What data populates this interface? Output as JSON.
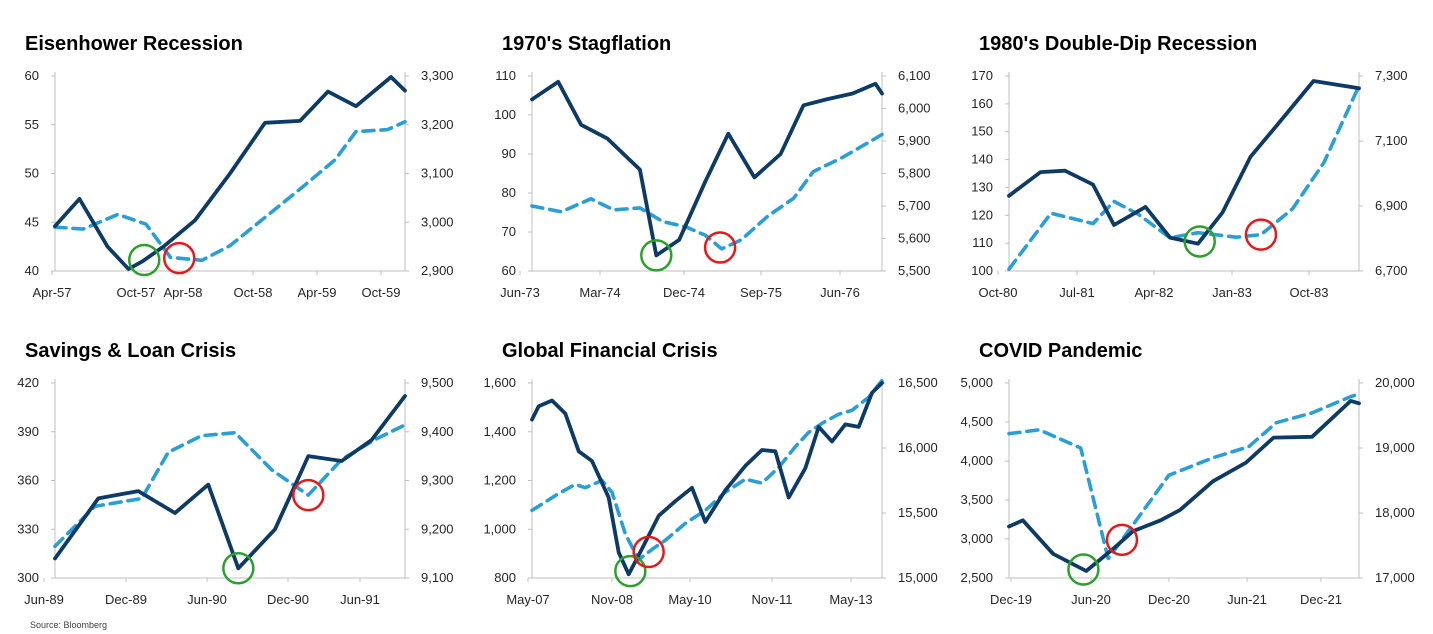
{
  "source": "Source: Bloomberg",
  "colors": {
    "dark_line": "#0d3b66",
    "light_line": "#2a9fd6",
    "green_circle": "#2ca02c",
    "red_circle": "#e31a1c"
  },
  "chart_data": [
    {
      "type": "line",
      "title": "Eisenhower Recession",
      "x_tick_labels": [
        "Apr-57",
        "Oct-57",
        "Apr-58",
        "Oct-58",
        "Apr-59",
        "Oct-59"
      ],
      "y_left": {
        "ylim": [
          40,
          60
        ],
        "ticks": [
          "40",
          "45",
          "50",
          "55",
          "60"
        ]
      },
      "y_right": {
        "ylim": [
          2900,
          3300
        ],
        "ticks": [
          "2,900",
          "3,000",
          "3,100",
          "3,200",
          "3,300"
        ]
      },
      "series": [
        {
          "axis": "left",
          "style": "solid",
          "points": [
            [
              0,
              44.6
            ],
            [
              0.7,
              47.4
            ],
            [
              1.5,
              42.5
            ],
            [
              2.1,
              40.2
            ],
            [
              2.5,
              41.0
            ],
            [
              3.1,
              42.5
            ],
            [
              4.0,
              45.2
            ],
            [
              5.0,
              50.0
            ],
            [
              6.0,
              55.2
            ],
            [
              7.0,
              55.4
            ],
            [
              7.8,
              58.4
            ],
            [
              8.6,
              56.9
            ],
            [
              9.6,
              59.9
            ],
            [
              10.0,
              58.5
            ]
          ]
        },
        {
          "axis": "right",
          "style": "dashed",
          "points": [
            [
              0,
              2990
            ],
            [
              0.8,
              2986
            ],
            [
              1.8,
              3016
            ],
            [
              2.6,
              2996
            ],
            [
              3.3,
              2928
            ],
            [
              4.2,
              2922
            ],
            [
              5.0,
              2952
            ],
            [
              6.0,
              3010
            ],
            [
              7.0,
              3068
            ],
            [
              8.0,
              3128
            ],
            [
              8.6,
              3186
            ],
            [
              9.5,
              3190
            ],
            [
              10.0,
              3206
            ]
          ]
        }
      ],
      "green_circle_x": 2.55,
      "red_circle_x": 3.55
    },
    {
      "type": "line",
      "title": "1970's Stagflation",
      "x_tick_labels": [
        "Jun-73",
        "Mar-74",
        "Dec-74",
        "Sep-75",
        "Jun-76"
      ],
      "y_left": {
        "ylim": [
          60,
          110
        ],
        "ticks": [
          "60",
          "70",
          "80",
          "90",
          "100",
          "110"
        ]
      },
      "y_right": {
        "ylim": [
          5500,
          6100
        ],
        "ticks": [
          "5,500",
          "5,600",
          "5,700",
          "5,800",
          "5,900",
          "6,000",
          "6,100"
        ]
      },
      "series": [
        {
          "axis": "left",
          "style": "solid",
          "points": [
            [
              0,
              104
            ],
            [
              0.8,
              108.5
            ],
            [
              1.5,
              97.5
            ],
            [
              2.3,
              94
            ],
            [
              3.3,
              86
            ],
            [
              3.8,
              64
            ],
            [
              4.5,
              68
            ],
            [
              5.3,
              83
            ],
            [
              6.0,
              95.2
            ],
            [
              6.8,
              84
            ],
            [
              7.6,
              90
            ],
            [
              8.3,
              102.5
            ],
            [
              9.0,
              104
            ],
            [
              9.8,
              105.5
            ],
            [
              10.5,
              108
            ],
            [
              10.7,
              105.5
            ]
          ]
        },
        {
          "axis": "right",
          "style": "dashed",
          "points": [
            [
              0,
              5700
            ],
            [
              0.9,
              5682
            ],
            [
              1.8,
              5722
            ],
            [
              2.5,
              5688
            ],
            [
              3.3,
              5694
            ],
            [
              4.0,
              5652
            ],
            [
              4.7,
              5636
            ],
            [
              5.3,
              5610
            ],
            [
              5.8,
              5568
            ],
            [
              6.4,
              5596
            ],
            [
              7.2,
              5668
            ],
            [
              8.0,
              5724
            ],
            [
              8.6,
              5806
            ],
            [
              9.5,
              5850
            ],
            [
              10.5,
              5908
            ],
            [
              10.7,
              5920
            ]
          ]
        }
      ],
      "green_circle_x": 3.8,
      "red_circle_x": 5.75
    },
    {
      "type": "line",
      "title": "1980's Double-Dip Recession",
      "x_tick_labels": [
        "Oct-80",
        "Jul-81",
        "Apr-82",
        "Jan-83",
        "Oct-83"
      ],
      "y_left": {
        "ylim": [
          100,
          170
        ],
        "ticks": [
          "100",
          "110",
          "120",
          "130",
          "140",
          "150",
          "160",
          "170"
        ]
      },
      "y_right": {
        "ylim": [
          6700,
          7300
        ],
        "ticks": [
          "6,700",
          "6,900",
          "7,100",
          "7,300"
        ]
      },
      "series": [
        {
          "axis": "left",
          "style": "solid",
          "points": [
            [
              0,
              127
            ],
            [
              0.9,
              135.5
            ],
            [
              1.6,
              136
            ],
            [
              2.4,
              131
            ],
            [
              3.0,
              116.5
            ],
            [
              3.9,
              123
            ],
            [
              4.6,
              112
            ],
            [
              5.4,
              109.8
            ],
            [
              6.1,
              121
            ],
            [
              6.9,
              141
            ],
            [
              7.7,
              153
            ],
            [
              8.7,
              168.2
            ],
            [
              10.0,
              165.6
            ]
          ]
        },
        {
          "axis": "right",
          "style": "dashed",
          "points": [
            [
              0,
              6706
            ],
            [
              1.2,
              6878
            ],
            [
              2.4,
              6846
            ],
            [
              3.0,
              6914
            ],
            [
              3.7,
              6874
            ],
            [
              4.6,
              6802
            ],
            [
              5.4,
              6818
            ],
            [
              6.5,
              6804
            ],
            [
              7.2,
              6812
            ],
            [
              8.1,
              6891
            ],
            [
              9.0,
              7034
            ],
            [
              10.0,
              7270
            ]
          ]
        }
      ],
      "green_circle_x": 5.45,
      "red_circle_x": 7.2
    },
    {
      "type": "line",
      "title": "Savings & Loan Crisis",
      "x_tick_labels": [
        "Jun-89",
        "Dec-89",
        "Jun-90",
        "Dec-90",
        "Jun-91"
      ],
      "y_left": {
        "ylim": [
          300,
          420
        ],
        "ticks": [
          "300",
          "330",
          "360",
          "390",
          "420"
        ]
      },
      "y_right": {
        "ylim": [
          9100,
          9500
        ],
        "ticks": [
          "9,100",
          "9,200",
          "9,300",
          "9,400",
          "9,500"
        ]
      },
      "series": [
        {
          "axis": "left",
          "style": "solid",
          "points": [
            [
              0,
              312
            ],
            [
              1.3,
              349
            ],
            [
              2.5,
              353.5
            ],
            [
              3.6,
              340
            ],
            [
              4.6,
              357.5
            ],
            [
              5.5,
              306
            ],
            [
              6.6,
              330
            ],
            [
              7.6,
              375
            ],
            [
              8.6,
              372
            ],
            [
              9.5,
              385
            ],
            [
              10.5,
              412
            ]
          ]
        },
        {
          "axis": "right",
          "style": "dashed",
          "points": [
            [
              0,
              9165
            ],
            [
              1.2,
              9247
            ],
            [
              2.6,
              9263
            ],
            [
              3.4,
              9358
            ],
            [
              4.4,
              9392
            ],
            [
              5.4,
              9398
            ],
            [
              6.5,
              9322
            ],
            [
              7.6,
              9270
            ],
            [
              8.6,
              9343
            ],
            [
              9.6,
              9384
            ],
            [
              10.5,
              9414
            ]
          ]
        }
      ],
      "green_circle_x": 5.5,
      "red_circle_x": 7.6
    },
    {
      "type": "line",
      "title": "Global Financial Crisis",
      "x_tick_labels": [
        "May-07",
        "Nov-08",
        "May-10",
        "Nov-11",
        "May-13"
      ],
      "y_left": {
        "ylim": [
          800,
          1600
        ],
        "ticks": [
          "800",
          "1,000",
          "1,200",
          "1,400",
          "1,600"
        ]
      },
      "y_right": {
        "ylim": [
          15000,
          16500
        ],
        "ticks": [
          "15,000",
          "15,500",
          "16,000",
          "16,500"
        ]
      },
      "series": [
        {
          "axis": "left",
          "style": "solid",
          "points": [
            [
              0,
              1450
            ],
            [
              0.2,
              1505
            ],
            [
              0.6,
              1528
            ],
            [
              1.0,
              1475
            ],
            [
              1.4,
              1320
            ],
            [
              1.8,
              1280
            ],
            [
              2.3,
              1130
            ],
            [
              2.6,
              905
            ],
            [
              2.9,
              815
            ],
            [
              3.3,
              920
            ],
            [
              3.8,
              1055
            ],
            [
              4.3,
              1115
            ],
            [
              4.8,
              1170
            ],
            [
              5.2,
              1030
            ],
            [
              5.8,
              1160
            ],
            [
              6.4,
              1260
            ],
            [
              6.9,
              1325
            ],
            [
              7.3,
              1320
            ],
            [
              7.7,
              1130
            ],
            [
              8.2,
              1250
            ],
            [
              8.6,
              1420
            ],
            [
              9.0,
              1360
            ],
            [
              9.4,
              1430
            ],
            [
              9.8,
              1420
            ],
            [
              10.2,
              1560
            ],
            [
              10.5,
              1600
            ]
          ]
        },
        {
          "axis": "right",
          "style": "dashed",
          "points": [
            [
              0,
              15520
            ],
            [
              0.8,
              15650
            ],
            [
              1.3,
              15720
            ],
            [
              1.6,
              15695
            ],
            [
              2.1,
              15750
            ],
            [
              2.4,
              15660
            ],
            [
              2.8,
              15340
            ],
            [
              3.2,
              15140
            ],
            [
              3.6,
              15220
            ],
            [
              4.0,
              15290
            ],
            [
              4.6,
              15420
            ],
            [
              5.2,
              15520
            ],
            [
              5.8,
              15660
            ],
            [
              6.4,
              15760
            ],
            [
              6.9,
              15730
            ],
            [
              7.4,
              15850
            ],
            [
              7.9,
              16010
            ],
            [
              8.3,
              16120
            ],
            [
              8.7,
              16190
            ],
            [
              9.2,
              16260
            ],
            [
              9.6,
              16290
            ],
            [
              10.1,
              16390
            ],
            [
              10.5,
              16520
            ]
          ]
        }
      ],
      "green_circle_x": 2.95,
      "red_circle_x": 3.5
    },
    {
      "type": "line",
      "title": "COVID Pandemic",
      "x_tick_labels": [
        "Dec-19",
        "Jun-20",
        "Dec-20",
        "Jun-21",
        "Dec-21"
      ],
      "y_left": {
        "ylim": [
          2500,
          5000
        ],
        "ticks": [
          "2,500",
          "3,000",
          "3,500",
          "4,000",
          "4,500",
          "5,000"
        ]
      },
      "y_right": {
        "ylim": [
          17000,
          20000
        ],
        "ticks": [
          "17,000",
          "18,000",
          "19,000",
          "20,000"
        ]
      },
      "series": [
        {
          "axis": "left",
          "style": "solid",
          "points": [
            [
              0,
              3160
            ],
            [
              0.5,
              3240
            ],
            [
              1.6,
              2810
            ],
            [
              2.8,
              2590
            ],
            [
              3.8,
              2880
            ],
            [
              4.5,
              3100
            ],
            [
              5.5,
              3240
            ],
            [
              6.2,
              3370
            ],
            [
              7.4,
              3740
            ],
            [
              8.6,
              3980
            ],
            [
              9.6,
              4300
            ],
            [
              11.0,
              4310
            ],
            [
              12.4,
              4770
            ],
            [
              12.7,
              4740
            ]
          ]
        },
        {
          "axis": "right",
          "style": "dashed",
          "points": [
            [
              0,
              19220
            ],
            [
              1.1,
              19280
            ],
            [
              2.6,
              19000
            ],
            [
              3.6,
              17300
            ],
            [
              4.4,
              17760
            ],
            [
              5.8,
              18580
            ],
            [
              7.4,
              18850
            ],
            [
              8.7,
              19020
            ],
            [
              9.7,
              19390
            ],
            [
              11.0,
              19540
            ],
            [
              12.4,
              19790
            ],
            [
              12.7,
              19830
            ]
          ]
        }
      ],
      "green_circle_x": 2.7,
      "red_circle_x": 4.1
    }
  ]
}
